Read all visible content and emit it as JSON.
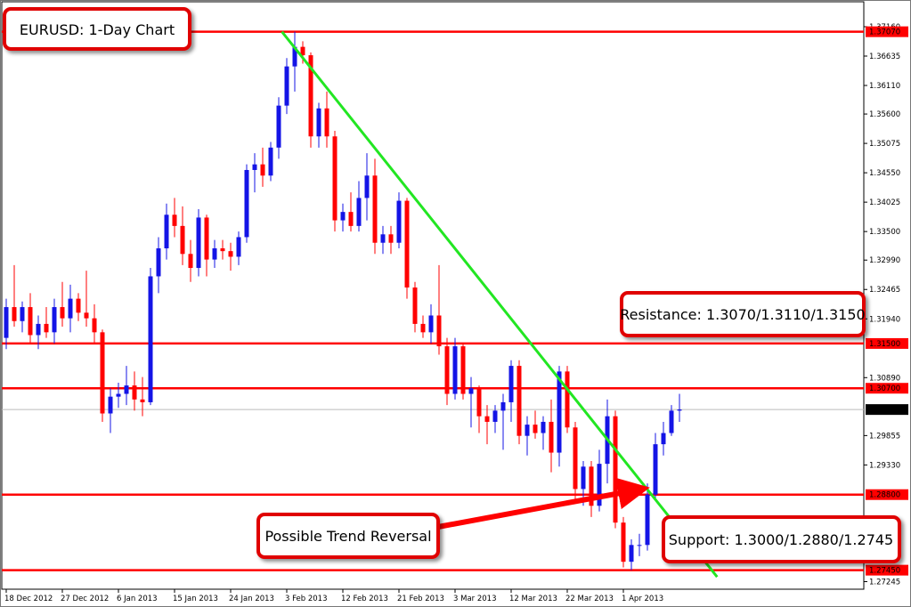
{
  "chart_data": {
    "type": "candlestick",
    "title": "EURUSD: 1-Day Chart",
    "categories": [
      "18 Dec 2012",
      null,
      null,
      null,
      null,
      null,
      null,
      "27 Dec 2012",
      null,
      null,
      null,
      null,
      null,
      null,
      "6 Jan 2013",
      null,
      null,
      null,
      null,
      null,
      null,
      "15 Jan 2013",
      null,
      null,
      null,
      null,
      null,
      null,
      "24 Jan 2013",
      null,
      null,
      null,
      null,
      null,
      null,
      "3 Feb 2013",
      null,
      null,
      null,
      null,
      null,
      null,
      "12 Feb 2013",
      null,
      null,
      null,
      null,
      null,
      null,
      "21 Feb 2013",
      null,
      null,
      null,
      null,
      null,
      null,
      "3 Mar 2013",
      null,
      null,
      null,
      null,
      null,
      null,
      "12 Mar 2013",
      null,
      null,
      null,
      null,
      null,
      null,
      "22 Mar 2013",
      null,
      null,
      null,
      null,
      null,
      null,
      "1 Apr 2013",
      null,
      null,
      null,
      null,
      null,
      null,
      null
    ],
    "open": [
      1.316,
      1.3215,
      1.319,
      1.3215,
      1.3165,
      1.3185,
      1.317,
      1.3215,
      1.3195,
      1.323,
      1.3205,
      1.3195,
      1.317,
      1.3025,
      1.3055,
      1.306,
      1.3075,
      1.305,
      1.3045,
      1.327,
      1.332,
      1.338,
      1.336,
      1.331,
      1.3285,
      1.3375,
      1.33,
      1.332,
      1.3315,
      1.3305,
      1.334,
      1.346,
      1.347,
      1.345,
      1.35,
      1.3575,
      1.3645,
      1.368,
      1.3665,
      1.352,
      1.357,
      1.352,
      1.337,
      1.3385,
      1.336,
      1.341,
      1.345,
      1.333,
      1.3345,
      1.333,
      1.3405,
      1.325,
      1.3185,
      1.317,
      1.32,
      1.3145,
      1.306,
      1.3145,
      1.306,
      1.307,
      1.302,
      1.301,
      1.303,
      1.3045,
      1.311,
      1.2985,
      1.3005,
      1.299,
      1.301,
      1.2955,
      1.31,
      1.3,
      1.289,
      1.293,
      1.286,
      1.2935,
      1.302,
      1.283,
      1.276,
      1.279,
      1.279,
      1.288,
      1.297,
      1.299,
      1.303
    ],
    "high": [
      1.323,
      1.329,
      1.3225,
      1.324,
      1.32,
      1.3215,
      1.323,
      1.326,
      1.3255,
      1.324,
      1.328,
      1.322,
      1.3175,
      1.307,
      1.308,
      1.311,
      1.31,
      1.309,
      1.3285,
      1.334,
      1.34,
      1.341,
      1.3395,
      1.3335,
      1.339,
      1.338,
      1.3335,
      1.3335,
      1.333,
      1.335,
      1.347,
      1.349,
      1.35,
      1.351,
      1.359,
      1.366,
      1.3707,
      1.369,
      1.367,
      1.358,
      1.36,
      1.353,
      1.34,
      1.342,
      1.344,
      1.349,
      1.348,
      1.336,
      1.336,
      1.342,
      1.341,
      1.326,
      1.32,
      1.322,
      1.329,
      1.316,
      1.316,
      1.315,
      1.309,
      1.3075,
      1.304,
      1.304,
      1.306,
      1.312,
      1.312,
      1.302,
      1.303,
      1.302,
      1.305,
      1.311,
      1.311,
      1.301,
      1.294,
      1.294,
      1.296,
      1.305,
      1.303,
      1.284,
      1.28,
      1.281,
      1.29,
      1.299,
      1.301,
      1.304,
      1.306
    ],
    "low": [
      1.314,
      1.318,
      1.317,
      1.315,
      1.314,
      1.316,
      1.315,
      1.318,
      1.317,
      1.319,
      1.318,
      1.315,
      1.301,
      1.299,
      1.3035,
      1.304,
      1.303,
      1.302,
      1.304,
      1.324,
      1.33,
      1.334,
      1.329,
      1.326,
      1.327,
      1.327,
      1.3285,
      1.33,
      1.328,
      1.329,
      1.333,
      1.342,
      1.343,
      1.344,
      1.348,
      1.356,
      1.36,
      1.365,
      1.35,
      1.35,
      1.35,
      1.335,
      1.335,
      1.335,
      1.335,
      1.337,
      1.331,
      1.331,
      1.331,
      1.332,
      1.323,
      1.317,
      1.316,
      1.315,
      1.313,
      1.304,
      1.305,
      1.305,
      1.3,
      1.299,
      1.297,
      1.299,
      1.296,
      1.301,
      1.297,
      1.295,
      1.298,
      1.296,
      1.292,
      1.293,
      1.299,
      1.287,
      1.286,
      1.284,
      1.285,
      1.29,
      1.282,
      1.275,
      1.2745,
      1.277,
      1.278,
      1.287,
      1.295,
      1.2985,
      1.301
    ],
    "close": [
      1.3215,
      1.319,
      1.3215,
      1.3165,
      1.3185,
      1.317,
      1.3215,
      1.3195,
      1.323,
      1.3205,
      1.3195,
      1.317,
      1.3025,
      1.3055,
      1.306,
      1.3075,
      1.305,
      1.3045,
      1.327,
      1.332,
      1.338,
      1.336,
      1.331,
      1.3285,
      1.3375,
      1.33,
      1.332,
      1.3315,
      1.3305,
      1.334,
      1.346,
      1.347,
      1.345,
      1.35,
      1.3575,
      1.3645,
      1.368,
      1.3665,
      1.352,
      1.357,
      1.352,
      1.337,
      1.3385,
      1.336,
      1.341,
      1.345,
      1.333,
      1.3345,
      1.333,
      1.3405,
      1.325,
      1.3185,
      1.317,
      1.32,
      1.3145,
      1.306,
      1.3145,
      1.306,
      1.307,
      1.302,
      1.301,
      1.303,
      1.3045,
      1.311,
      1.2985,
      1.3005,
      1.299,
      1.301,
      1.2955,
      1.31,
      1.3,
      1.289,
      1.293,
      1.286,
      1.2935,
      1.302,
      1.283,
      1.276,
      1.279,
      1.279,
      1.288,
      1.297,
      1.299,
      1.303,
      1.3032
    ],
    "up_color": "#1414e6",
    "down_color": "#ff0000",
    "ylim": [
      1.2711,
      1.37605
    ],
    "yticks": [
      {
        "value": 1.3716,
        "label": "1.37160"
      },
      1.36635,
      {
        "value": 1.3611,
        "label": "1.36110"
      },
      {
        "value": 1.356,
        "label": "1.35600"
      },
      1.35075,
      {
        "value": 1.3455,
        "label": "1.34550"
      },
      1.34025,
      {
        "value": 1.335,
        "label": "1.33500"
      },
      {
        "value": 1.3299,
        "label": "1.32990"
      },
      1.32465,
      {
        "value": 1.3194,
        "label": "1.31940"
      },
      {
        "value": 1.3089,
        "label": "1.30890"
      },
      1.29855,
      {
        "value": 1.2933,
        "label": "1.29330"
      },
      1.27245
    ],
    "levels": [
      {
        "value": 1.3707,
        "label": "1.37070"
      },
      {
        "value": 1.315,
        "label": "1.31500"
      },
      {
        "value": 1.307,
        "label": "1.30700"
      },
      {
        "value": 1.288,
        "label": "1.28800"
      },
      {
        "value": 1.2745,
        "label": "1.27450"
      }
    ],
    "level_color": "#ff0000",
    "current": {
      "value": 1.3032,
      "label": "1.30320"
    },
    "trendline": {
      "x": [
        34.4,
        88.7
      ],
      "values": [
        1.3707,
        1.2733
      ],
      "color": "#22e622"
    },
    "annotations": [
      "Resistance: 1.3070/1.3110/1.3150",
      "Support: 1.3000/1.2880/1.2745",
      "Possible Trend Reversal"
    ]
  }
}
